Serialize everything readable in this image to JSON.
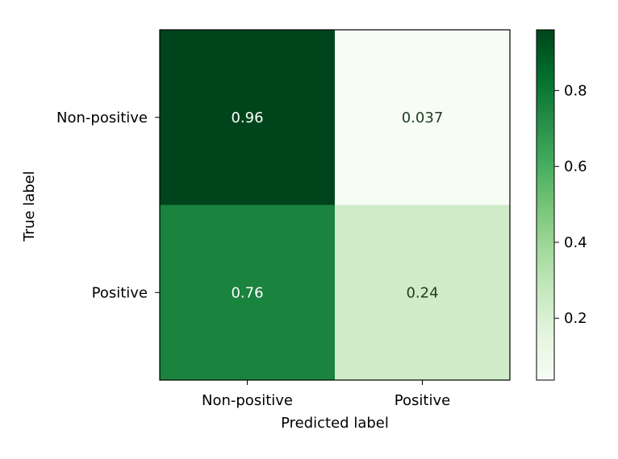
{
  "chart_data": {
    "type": "heatmap",
    "title": "",
    "xlabel": "Predicted label",
    "ylabel": "True label",
    "x_categories": [
      "Non-positive",
      "Positive"
    ],
    "y_categories": [
      "Non-positive",
      "Positive"
    ],
    "values": [
      [
        0.96,
        0.037
      ],
      [
        0.76,
        0.24
      ]
    ],
    "value_labels": [
      [
        "0.96",
        "0.037"
      ],
      [
        "0.76",
        "0.24"
      ]
    ],
    "colormap": "Greens",
    "colorbar": {
      "vmin": 0.037,
      "vmax": 0.96,
      "ticks": [
        0.2,
        0.4,
        0.6,
        0.8
      ],
      "tick_labels": [
        "0.2",
        "0.4",
        "0.6",
        "0.8"
      ]
    },
    "grid": false
  }
}
